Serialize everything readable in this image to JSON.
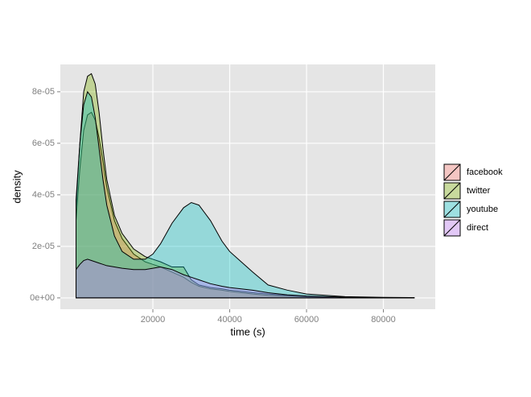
{
  "chart_data": {
    "type": "area",
    "x_label": "time (s)",
    "y_label": "density",
    "x": [
      0,
      1000,
      2000,
      3000,
      4000,
      5000,
      6000,
      7000,
      8000,
      10000,
      12000,
      15000,
      18000,
      20000,
      22000,
      25000,
      28000,
      30000,
      32000,
      35000,
      38000,
      40000,
      43000,
      46000,
      50000,
      55000,
      60000,
      70000,
      80000,
      88000
    ],
    "series": [
      {
        "name": "facebook",
        "color": "#F8766D",
        "values": [
          3e-05,
          5e-05,
          6.5e-05,
          7.1e-05,
          7.2e-05,
          6.9e-05,
          6.2e-05,
          5.3e-05,
          4.3e-05,
          3e-05,
          2.3e-05,
          1.7e-05,
          1.4e-05,
          1.3e-05,
          1.2e-05,
          1e-05,
          8e-06,
          6e-06,
          4.5e-06,
          3.5e-06,
          3e-06,
          2.5e-06,
          2e-06,
          1.5e-06,
          1e-06,
          7e-07,
          4e-07,
          2e-07,
          1e-07,
          5e-08
        ]
      },
      {
        "name": "twitter",
        "color": "#7CAE00",
        "values": [
          3.5e-05,
          6e-05,
          8e-05,
          8.6e-05,
          8.7e-05,
          8.3e-05,
          7.2e-05,
          5.8e-05,
          4.6e-05,
          3.2e-05,
          2.5e-05,
          1.9e-05,
          1.6e-05,
          1.5e-05,
          1.4e-05,
          1.2e-05,
          1.2e-05,
          7e-06,
          5e-06,
          4e-06,
          3.5e-06,
          3e-06,
          2.5e-06,
          2e-06,
          1.5e-06,
          1e-06,
          5e-07,
          2e-07,
          1e-07,
          5e-08
        ]
      },
      {
        "name": "youtube",
        "color": "#00BFC4",
        "values": [
          3.8e-05,
          6e-05,
          7.5e-05,
          8e-05,
          7.8e-05,
          7e-05,
          5.8e-05,
          4.6e-05,
          3.6e-05,
          2.4e-05,
          1.8e-05,
          1.5e-05,
          1.5e-05,
          1.7e-05,
          2.1e-05,
          2.9e-05,
          3.5e-05,
          3.7e-05,
          3.6e-05,
          3e-05,
          2.2e-05,
          1.8e-05,
          1.4e-05,
          1e-05,
          5e-06,
          3e-06,
          1.5e-06,
          5e-07,
          2e-07,
          1e-07
        ]
      },
      {
        "name": "direct",
        "color": "#C77CFF",
        "values": [
          1.1e-05,
          1.3e-05,
          1.45e-05,
          1.5e-05,
          1.45e-05,
          1.4e-05,
          1.35e-05,
          1.3e-05,
          1.25e-05,
          1.2e-05,
          1.15e-05,
          1.1e-05,
          1.1e-05,
          1.15e-05,
          1.2e-05,
          1.1e-05,
          9e-06,
          8e-06,
          7e-06,
          5.5e-06,
          4.5e-06,
          4e-06,
          3.5e-06,
          3e-06,
          2e-06,
          1.2e-06,
          7e-07,
          3e-07,
          1e-07,
          5e-08
        ]
      }
    ],
    "xlim": [
      -4084,
      93508
    ],
    "ylim": [
      -4.4e-06,
      9.06e-05
    ],
    "xticks": [
      20000,
      40000,
      60000,
      80000
    ],
    "yticks": [
      {
        "value": 0,
        "label": "0e+00"
      },
      {
        "value": 2e-05,
        "label": "2e-05"
      },
      {
        "value": 4e-05,
        "label": "4e-05"
      },
      {
        "value": 6e-05,
        "label": "6e-05"
      },
      {
        "value": 8e-05,
        "label": "8e-05"
      }
    ],
    "grid": true,
    "legend": "right",
    "alpha": 0.35
  }
}
